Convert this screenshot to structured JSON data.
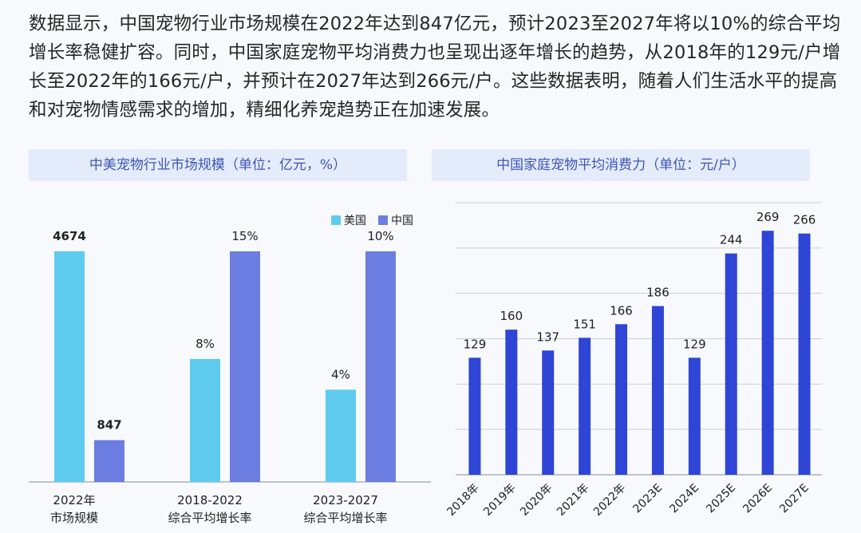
{
  "intro_text": "数据显示，中国宠物行业市场规模在2022年达到847亿元，预计2023至2027年将以10%的综合平均增长率稳健扩容。同时，中国家庭宠物平均消费力也呈现出逐年增长的趋势，从2018年的129元/户增长至2022年的166元/户，并预计在2027年达到266元/户。这些数据表明，随着人们生活水平的提高和对宠物情感需求的增加，精细化养宠趋势正在加速发展。",
  "colors": {
    "us": "#5fcbef",
    "china": "#6b7de0",
    "china_bar": "#2e45d6",
    "panel_bg": "#e4ebfa",
    "panel_text": "#3d56b2"
  },
  "chart_data": [
    {
      "type": "bar",
      "title": "中美宠物行业市场规模（单位：亿元，%）",
      "categories": [
        "2022年\n市场规模",
        "2018-2022\n综合平均增长率",
        "2023-2027\n综合平均增长率"
      ],
      "series": [
        {
          "name": "美国",
          "values": [
            4674,
            8,
            4
          ],
          "labels": [
            "4674",
            "8%",
            "4%"
          ]
        },
        {
          "name": "中国",
          "values": [
            847,
            15,
            10
          ],
          "labels": [
            "847",
            "15%",
            "10%"
          ]
        }
      ],
      "legend": "top-right",
      "grid": false
    },
    {
      "type": "bar",
      "title": "中国家庭宠物平均消费力（单位：元/户）",
      "categories": [
        "2018年",
        "2019年",
        "2020年",
        "2021年",
        "2022年",
        "2023E",
        "2024E",
        "2025E",
        "2026E",
        "2027E"
      ],
      "values": [
        129,
        160,
        137,
        151,
        166,
        186,
        129,
        244,
        269,
        266
      ],
      "ylim": [
        0,
        300
      ],
      "grid": true
    }
  ]
}
